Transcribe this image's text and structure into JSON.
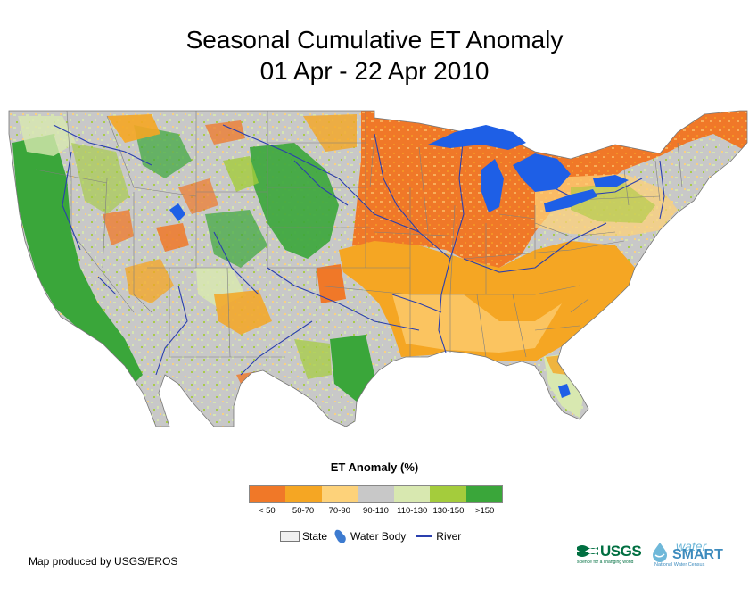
{
  "title": {
    "line1": "Seasonal Cumulative ET Anomaly",
    "line2": "01 Apr - 22 Apr 2010"
  },
  "legend": {
    "title": "ET Anomaly (%)",
    "classes": [
      {
        "label": "< 50",
        "color": "#f07828"
      },
      {
        "label": "50-70",
        "color": "#f5a623"
      },
      {
        "label": "70-90",
        "color": "#fdd27a"
      },
      {
        "label": "90-110",
        "color": "#c8c8c8"
      },
      {
        "label": "110-130",
        "color": "#d8e8b0"
      },
      {
        "label": "130-150",
        "color": "#a4cc3c"
      },
      {
        "label": ">150",
        "color": "#3aa63a"
      }
    ]
  },
  "key": {
    "state_label": "State",
    "water_body_label": "Water Body",
    "river_label": "River",
    "water_color": "#1e5fe6",
    "river_color": "#2a3fae"
  },
  "credit": "Map produced by USGS/EROS",
  "logos": {
    "usgs_text": "USGS",
    "usgs_tagline": "science for a changing world",
    "water_text": "water",
    "smart_text": "SMART",
    "watersmart_tagline": "National Water Census"
  }
}
